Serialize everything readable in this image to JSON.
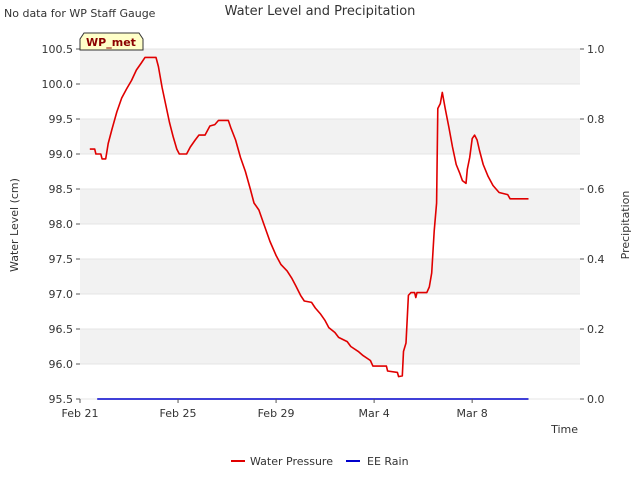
{
  "note": "No data for WP Staff Gauge",
  "badge": "WP_met",
  "colors": {
    "background": "#ffffff",
    "band": "#f2f2f2",
    "water_pressure": "#e00000",
    "ee_rain": "#0000cc",
    "badge_fill": "#ffffc8",
    "badge_text": "#8b0000"
  },
  "chart_data": {
    "type": "line",
    "title": "Water Level and Precipitation",
    "xlabel": "Time",
    "ylabel": "Water Level (cm)",
    "y2label": "Precipitation",
    "xlim": [
      0,
      20.4
    ],
    "ylim": [
      95.5,
      100.5
    ],
    "y2lim": [
      0.0,
      1.0
    ],
    "x_ticks": [
      {
        "x": 0,
        "label": "Feb 21"
      },
      {
        "x": 4,
        "label": "Feb 25"
      },
      {
        "x": 8,
        "label": "Feb 29"
      },
      {
        "x": 12,
        "label": "Mar 4"
      },
      {
        "x": 16,
        "label": "Mar 8"
      }
    ],
    "y_ticks": [
      "95.5",
      "96.0",
      "96.5",
      "97.0",
      "97.5",
      "98.0",
      "98.5",
      "99.0",
      "99.5",
      "100.0",
      "100.5"
    ],
    "y2_ticks": [
      "0.0",
      "0.2",
      "0.4",
      "0.6",
      "0.8",
      "1.0"
    ],
    "grid": "horizontal alternating bands",
    "legend_position": "bottom",
    "series": [
      {
        "name": "Water Pressure",
        "axis": "left",
        "color": "#e00000",
        "points": [
          [
            0.4,
            99.07
          ],
          [
            0.6,
            99.07
          ],
          [
            0.65,
            99.0
          ],
          [
            0.85,
            99.0
          ],
          [
            0.9,
            98.93
          ],
          [
            1.05,
            98.93
          ],
          [
            1.15,
            99.15
          ],
          [
            1.3,
            99.35
          ],
          [
            1.5,
            99.6
          ],
          [
            1.7,
            99.8
          ],
          [
            1.9,
            99.93
          ],
          [
            2.1,
            100.05
          ],
          [
            2.3,
            100.2
          ],
          [
            2.5,
            100.3
          ],
          [
            2.65,
            100.38
          ],
          [
            3.1,
            100.38
          ],
          [
            3.2,
            100.25
          ],
          [
            3.35,
            99.95
          ],
          [
            3.5,
            99.7
          ],
          [
            3.65,
            99.45
          ],
          [
            3.8,
            99.25
          ],
          [
            3.95,
            99.07
          ],
          [
            4.05,
            99.0
          ],
          [
            4.35,
            99.0
          ],
          [
            4.5,
            99.1
          ],
          [
            4.7,
            99.2
          ],
          [
            4.85,
            99.27
          ],
          [
            5.1,
            99.27
          ],
          [
            5.3,
            99.4
          ],
          [
            5.5,
            99.42
          ],
          [
            5.65,
            99.48
          ],
          [
            6.05,
            99.48
          ],
          [
            6.15,
            99.38
          ],
          [
            6.35,
            99.2
          ],
          [
            6.55,
            98.95
          ],
          [
            6.75,
            98.75
          ],
          [
            6.95,
            98.5
          ],
          [
            7.1,
            98.3
          ],
          [
            7.3,
            98.2
          ],
          [
            7.5,
            98.0
          ],
          [
            7.75,
            97.75
          ],
          [
            8.0,
            97.55
          ],
          [
            8.2,
            97.42
          ],
          [
            8.45,
            97.33
          ],
          [
            8.65,
            97.22
          ],
          [
            8.8,
            97.12
          ],
          [
            9.0,
            96.98
          ],
          [
            9.15,
            96.9
          ],
          [
            9.45,
            96.88
          ],
          [
            9.6,
            96.8
          ],
          [
            9.8,
            96.72
          ],
          [
            10.0,
            96.62
          ],
          [
            10.15,
            96.52
          ],
          [
            10.4,
            96.45
          ],
          [
            10.55,
            96.38
          ],
          [
            10.9,
            96.32
          ],
          [
            11.05,
            96.25
          ],
          [
            11.35,
            96.18
          ],
          [
            11.55,
            96.12
          ],
          [
            11.85,
            96.05
          ],
          [
            11.95,
            95.97
          ],
          [
            12.5,
            95.97
          ],
          [
            12.55,
            95.9
          ],
          [
            12.95,
            95.88
          ],
          [
            13.0,
            95.82
          ],
          [
            13.15,
            95.83
          ],
          [
            13.2,
            96.18
          ],
          [
            13.3,
            96.3
          ],
          [
            13.4,
            96.98
          ],
          [
            13.5,
            97.02
          ],
          [
            13.65,
            97.02
          ],
          [
            13.7,
            96.95
          ],
          [
            13.75,
            97.02
          ],
          [
            14.15,
            97.02
          ],
          [
            14.25,
            97.1
          ],
          [
            14.35,
            97.3
          ],
          [
            14.45,
            97.9
          ],
          [
            14.55,
            98.3
          ],
          [
            14.6,
            99.65
          ],
          [
            14.7,
            99.72
          ],
          [
            14.78,
            99.88
          ],
          [
            14.9,
            99.65
          ],
          [
            15.05,
            99.38
          ],
          [
            15.2,
            99.1
          ],
          [
            15.35,
            98.85
          ],
          [
            15.5,
            98.72
          ],
          [
            15.6,
            98.62
          ],
          [
            15.75,
            98.58
          ],
          [
            15.8,
            98.78
          ],
          [
            15.9,
            98.95
          ],
          [
            16.0,
            99.22
          ],
          [
            16.1,
            99.27
          ],
          [
            16.2,
            99.2
          ],
          [
            16.3,
            99.05
          ],
          [
            16.45,
            98.85
          ],
          [
            16.65,
            98.68
          ],
          [
            16.85,
            98.55
          ],
          [
            17.1,
            98.45
          ],
          [
            17.45,
            98.42
          ],
          [
            17.55,
            98.36
          ],
          [
            18.3,
            98.36
          ]
        ]
      },
      {
        "name": "EE Rain",
        "axis": "right",
        "color": "#0000cc",
        "points": [
          [
            0.7,
            0.0
          ],
          [
            18.3,
            0.0
          ]
        ]
      }
    ]
  }
}
